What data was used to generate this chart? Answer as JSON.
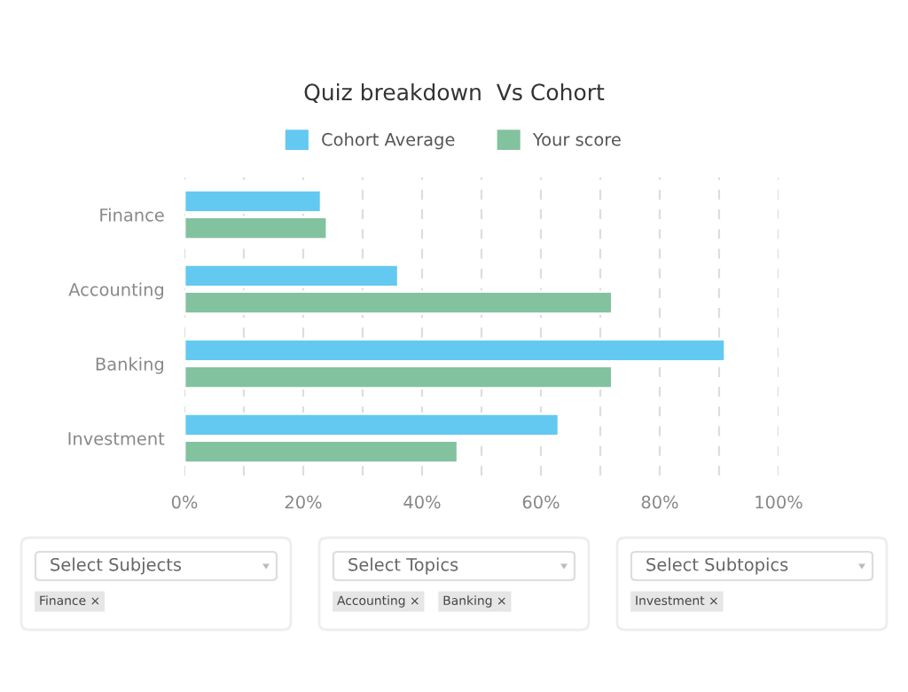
{
  "chart_data": {
    "type": "bar",
    "orientation": "horizontal",
    "title": "Quiz breakdown  Vs Cohort",
    "categories": [
      "Finance",
      "Accounting",
      "Banking",
      "Investment"
    ],
    "series": [
      {
        "name": "Cohort Average",
        "color": "#63c9f0",
        "values": [
          23,
          36,
          91,
          63
        ]
      },
      {
        "name": "Your score",
        "color": "#83c29f",
        "values": [
          24,
          72,
          72,
          46
        ]
      }
    ],
    "xlim": [
      0,
      100
    ],
    "xticks": [
      {
        "value": 0,
        "label": "0%"
      },
      {
        "value": 10,
        "label": null
      },
      {
        "value": 20,
        "label": "20%"
      },
      {
        "value": 30,
        "label": null
      },
      {
        "value": 40,
        "label": "40%"
      },
      {
        "value": 50,
        "label": null
      },
      {
        "value": 60,
        "label": "60%"
      },
      {
        "value": 70,
        "label": null
      },
      {
        "value": 80,
        "label": "80%"
      },
      {
        "value": 90,
        "label": null
      },
      {
        "value": 100,
        "label": "100%"
      }
    ],
    "grid": "x",
    "legend": "top",
    "annotations": [
      "Select Subjects",
      "Finance ×",
      "Select Topics",
      "Accounting ×",
      "Banking ×",
      "Select Subtopics",
      "Investment ×"
    ]
  }
}
